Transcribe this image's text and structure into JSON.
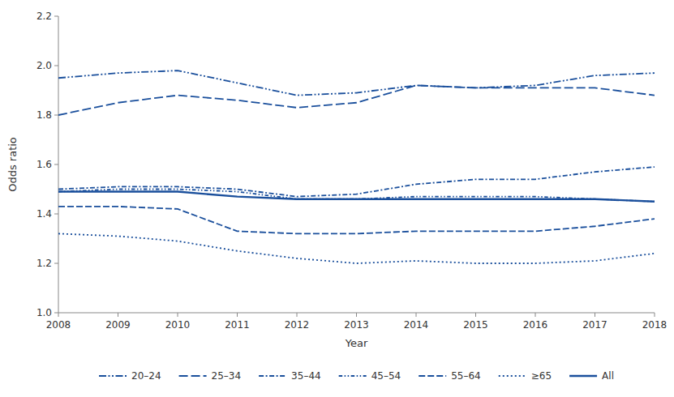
{
  "chart_data": {
    "type": "line",
    "x": [
      2008,
      2009,
      2010,
      2011,
      2012,
      2013,
      2014,
      2015,
      2016,
      2017,
      2018
    ],
    "xlabel": "Year",
    "ylabel": "Odds ratio",
    "color": "#1a4f9c",
    "series": [
      {
        "name": "20–24",
        "line_style": "dash-dot-dot",
        "values": [
          1.95,
          1.97,
          1.98,
          1.93,
          1.88,
          1.89,
          1.92,
          1.91,
          1.92,
          1.96,
          1.97
        ]
      },
      {
        "name": "25–34",
        "line_style": "long-dash",
        "values": [
          1.8,
          1.85,
          1.88,
          1.86,
          1.83,
          1.85,
          1.92,
          1.91,
          1.91,
          1.91,
          1.88
        ]
      },
      {
        "name": "35–44",
        "line_style": "dash-dot",
        "values": [
          1.5,
          1.51,
          1.51,
          1.5,
          1.47,
          1.48,
          1.52,
          1.54,
          1.54,
          1.57,
          1.59
        ]
      },
      {
        "name": "45–54",
        "line_style": "short-dash-dot-dot",
        "values": [
          1.49,
          1.5,
          1.5,
          1.49,
          1.46,
          1.46,
          1.47,
          1.47,
          1.47,
          1.46,
          1.45
        ]
      },
      {
        "name": "55–64",
        "line_style": "dashed",
        "values": [
          1.43,
          1.43,
          1.42,
          1.33,
          1.32,
          1.32,
          1.33,
          1.33,
          1.33,
          1.35,
          1.38
        ]
      },
      {
        "name": "≥65",
        "line_style": "dotted",
        "values": [
          1.32,
          1.31,
          1.29,
          1.25,
          1.22,
          1.2,
          1.21,
          1.2,
          1.2,
          1.21,
          1.24
        ]
      },
      {
        "name": "All",
        "line_style": "solid",
        "values": [
          1.49,
          1.49,
          1.49,
          1.47,
          1.46,
          1.46,
          1.46,
          1.46,
          1.46,
          1.46,
          1.45
        ]
      }
    ],
    "xlim": [
      2008,
      2018
    ],
    "ylim": [
      1.0,
      2.2
    ],
    "xticks": [
      2008,
      2009,
      2010,
      2011,
      2012,
      2013,
      2014,
      2015,
      2016,
      2017,
      2018
    ],
    "yticks": [
      {
        "value": 1.0,
        "label": "1.0"
      },
      1.2,
      1.4,
      1.6,
      1.8,
      {
        "value": 2.0,
        "label": "2.0"
      },
      2.2
    ],
    "grid": false,
    "legend": "bottom"
  }
}
